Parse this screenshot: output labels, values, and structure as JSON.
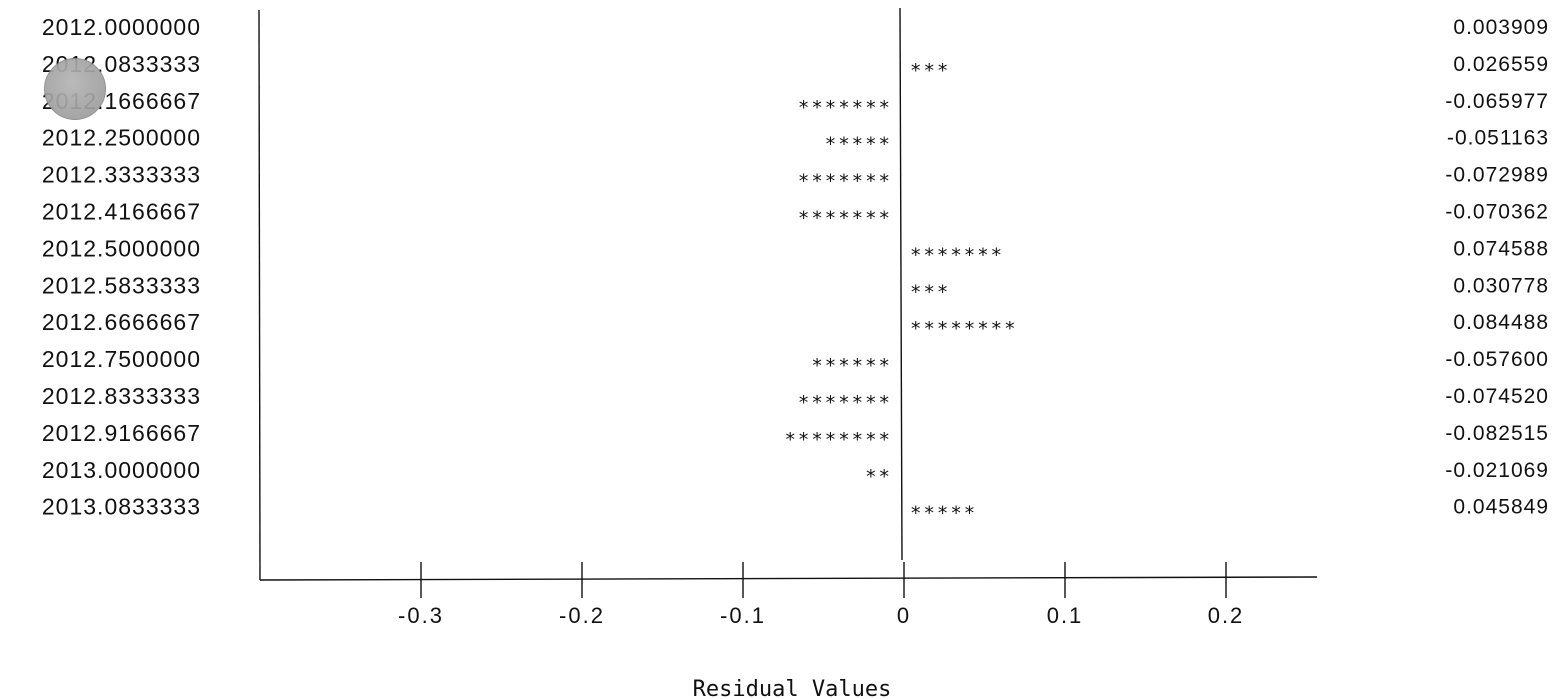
{
  "chart_data": {
    "type": "bar",
    "orientation": "horizontal",
    "mark_glyph": "*",
    "xlabel": "Residual Values",
    "xlim": [
      -0.4,
      0.255
    ],
    "xticks": [
      -0.3,
      -0.2,
      -0.1,
      0,
      0.1,
      0.2
    ],
    "xtick_labels": [
      "-0.3",
      "-0.2",
      "-0.1",
      "0",
      "0.1",
      "0.2"
    ],
    "grid": false,
    "rows": [
      {
        "date": "2012.0000000",
        "residual": 0.003909,
        "residual_label": "0.003909",
        "stars": ""
      },
      {
        "date": "2012.0833333",
        "residual": 0.026559,
        "residual_label": "0.026559",
        "stars": "***"
      },
      {
        "date": "2012.1666667",
        "residual": -0.065977,
        "residual_label": "-0.065977",
        "stars": "*******"
      },
      {
        "date": "2012.2500000",
        "residual": -0.051163,
        "residual_label": "-0.051163",
        "stars": "*****"
      },
      {
        "date": "2012.3333333",
        "residual": -0.072989,
        "residual_label": "-0.072989",
        "stars": "*******"
      },
      {
        "date": "2012.4166667",
        "residual": -0.070362,
        "residual_label": "-0.070362",
        "stars": "*******"
      },
      {
        "date": "2012.5000000",
        "residual": 0.074588,
        "residual_label": "0.074588",
        "stars": "*******"
      },
      {
        "date": "2012.5833333",
        "residual": 0.030778,
        "residual_label": "0.030778",
        "stars": "***"
      },
      {
        "date": "2012.6666667",
        "residual": 0.084488,
        "residual_label": "0.084488",
        "stars": "********"
      },
      {
        "date": "2012.7500000",
        "residual": -0.0576,
        "residual_label": "-0.057600",
        "stars": "******"
      },
      {
        "date": "2012.8333333",
        "residual": -0.07452,
        "residual_label": "-0.074520",
        "stars": "*******"
      },
      {
        "date": "2012.9166667",
        "residual": -0.082515,
        "residual_label": "-0.082515",
        "stars": "********"
      },
      {
        "date": "2013.0000000",
        "residual": -0.021069,
        "residual_label": "-0.021069",
        "stars": "**"
      },
      {
        "date": "2013.0833333",
        "residual": 0.045849,
        "residual_label": "0.045849",
        "stars": "*****"
      }
    ]
  }
}
